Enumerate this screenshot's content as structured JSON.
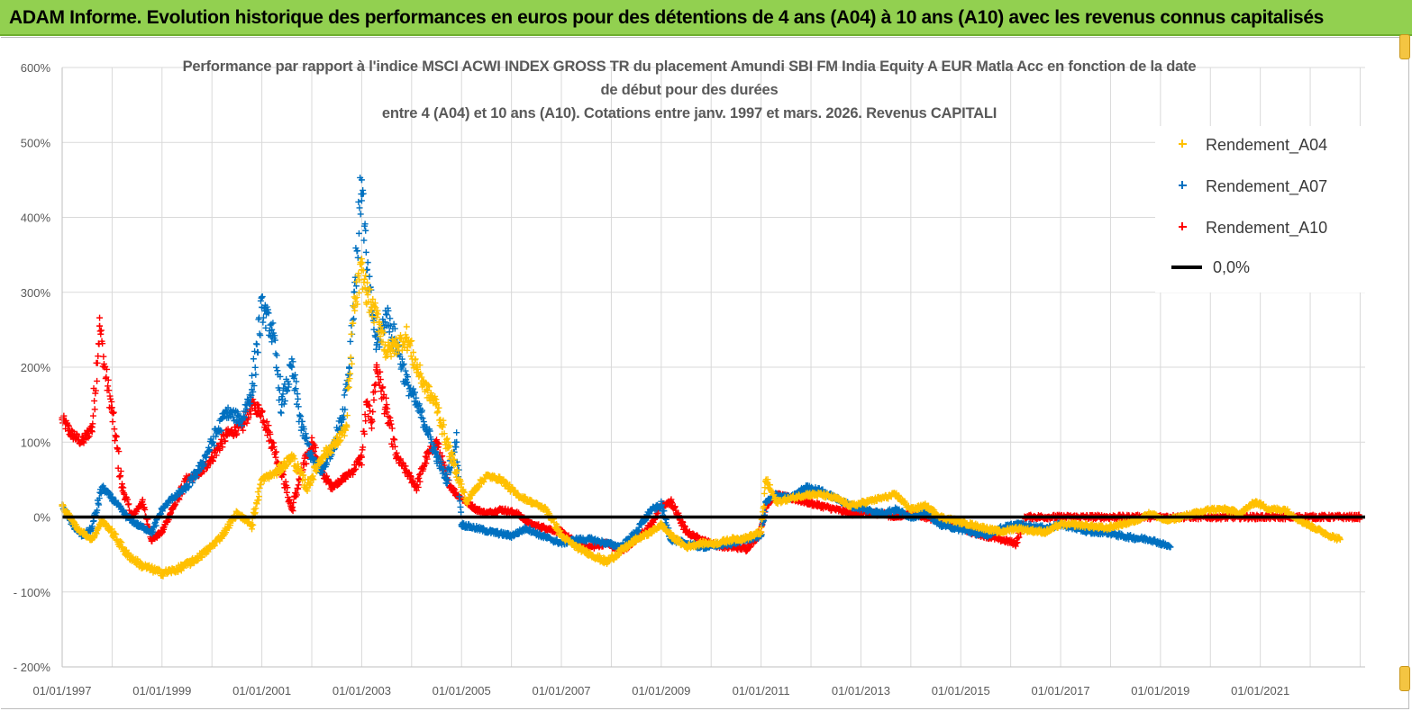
{
  "banner": {
    "title": "ADAM Informe. Evolution historique des performances en euros pour des détentions de 4 ans (A04) à 10 ans (A10) avec les revenus connus capitalisés"
  },
  "colors": {
    "banner_bg": "#92d050",
    "a04": "#ffc000",
    "a07": "#0070c0",
    "a10": "#ff0000",
    "zero_line": "#000000",
    "grid": "#d9d9d9"
  },
  "chart_data": {
    "type": "scatter",
    "title_lines": [
      "Performance par rapport à l'indice MSCI ACWI INDEX GROSS TR  du placement Amundi SBI FM India Equity A EUR Matla Acc en fonction de la date",
      "de début pour des durées",
      "entre 4 (A04) et 10 ans (A10). Cotations entre janv. 1997 et mars. 2026. Revenus CAPITALI"
    ],
    "xlabel": "",
    "ylabel": "",
    "x_axis_unit": "year (decimal)",
    "xlim": [
      1997.0,
      2023.1
    ],
    "ylim": [
      -200,
      600
    ],
    "grid": true,
    "legend_position": "top-right",
    "x_ticks": [
      {
        "value": 1997,
        "label": "01/01/1997"
      },
      {
        "value": 1999,
        "label": "01/01/1999"
      },
      {
        "value": 2001,
        "label": "01/01/2001"
      },
      {
        "value": 2003,
        "label": "01/01/2003"
      },
      {
        "value": 2005,
        "label": "01/01/2005"
      },
      {
        "value": 2007,
        "label": "01/01/2007"
      },
      {
        "value": 2009,
        "label": "01/01/2009"
      },
      {
        "value": 2011,
        "label": "01/01/2011"
      },
      {
        "value": 2013,
        "label": "01/01/2013"
      },
      {
        "value": 2015,
        "label": "01/01/2015"
      },
      {
        "value": 2017,
        "label": "01/01/2017"
      },
      {
        "value": 2019,
        "label": "01/01/2019"
      },
      {
        "value": 2021,
        "label": "01/01/2021"
      }
    ],
    "y_ticks": [
      {
        "value": 600,
        "label": "600%"
      },
      {
        "value": 500,
        "label": "500%"
      },
      {
        "value": 400,
        "label": "400%"
      },
      {
        "value": 300,
        "label": "300%"
      },
      {
        "value": 200,
        "label": "200%"
      },
      {
        "value": 100,
        "label": "100%"
      },
      {
        "value": 0,
        "label": "0%"
      },
      {
        "value": -100,
        "label": "- 100%"
      },
      {
        "value": -200,
        "label": "- 200%"
      }
    ],
    "series": [
      {
        "name": "Rendement_A04",
        "color": "#ffc000",
        "marker": "plus",
        "x": [
          1997.0,
          1997.3,
          1997.6,
          1997.8,
          1998.0,
          1998.3,
          1998.6,
          1998.9,
          1999.0,
          1999.3,
          1999.6,
          1999.9,
          2000.2,
          2000.5,
          2000.8,
          2001.0,
          2001.3,
          2001.6,
          2001.9,
          2002.2,
          2002.5,
          2002.7,
          2002.85,
          2003.0,
          2003.1,
          2003.2,
          2003.35,
          2003.5,
          2003.7,
          2003.9,
          2004.1,
          2004.3,
          2004.5,
          2004.7,
          2004.9,
          2005.1,
          2005.3,
          2005.5,
          2005.8,
          2006.1,
          2006.4,
          2006.7,
          2007.0,
          2007.3,
          2007.6,
          2007.9,
          2008.2,
          2008.5,
          2008.8,
          2009.0,
          2009.2,
          2009.5,
          2009.8,
          2010.1,
          2010.4,
          2010.7,
          2011.0,
          2011.1,
          2011.3,
          2011.6,
          2011.9,
          2012.2,
          2012.5,
          2012.8,
          2013.1,
          2013.4,
          2013.7,
          2014.0,
          2014.3,
          2014.6,
          2014.9,
          2015.2,
          2015.5,
          2015.8,
          2016.1,
          2016.4,
          2016.7,
          2017.0,
          2017.3,
          2017.6,
          2017.9,
          2018.2,
          2018.5,
          2018.8,
          2019.1,
          2019.4,
          2019.7,
          2020.0,
          2020.3,
          2020.6,
          2020.9,
          2021.2,
          2021.5,
          2021.8,
          2022.1,
          2022.4,
          2022.6
        ],
        "values": [
          15,
          -15,
          -30,
          -5,
          -20,
          -50,
          -65,
          -72,
          -75,
          -70,
          -60,
          -45,
          -25,
          5,
          -10,
          50,
          60,
          80,
          40,
          80,
          100,
          120,
          280,
          330,
          300,
          280,
          260,
          220,
          230,
          240,
          200,
          170,
          150,
          100,
          60,
          20,
          40,
          55,
          50,
          30,
          20,
          10,
          -25,
          -40,
          -50,
          -60,
          -45,
          -30,
          -20,
          -10,
          -25,
          -40,
          -35,
          -35,
          -30,
          -28,
          -20,
          50,
          20,
          25,
          30,
          30,
          25,
          15,
          20,
          25,
          30,
          10,
          15,
          0,
          -5,
          -10,
          -15,
          -20,
          -15,
          -18,
          -20,
          -10,
          -10,
          -12,
          -15,
          -10,
          -5,
          5,
          -5,
          0,
          5,
          10,
          10,
          5,
          20,
          10,
          10,
          -5,
          -15,
          -25,
          -30
        ]
      },
      {
        "name": "Rendement_A07",
        "color": "#0070c0",
        "marker": "plus",
        "x": [
          1997.0,
          1997.2,
          1997.4,
          1997.6,
          1997.8,
          1998.0,
          1998.3,
          1998.5,
          1998.8,
          1999.0,
          1999.2,
          1999.5,
          1999.8,
          2000.0,
          2000.3,
          2000.6,
          2000.8,
          2001.0,
          2001.2,
          2001.4,
          2001.6,
          2001.8,
          2002.0,
          2002.2,
          2002.4,
          2002.6,
          2002.75,
          2002.85,
          2003.0,
          2003.1,
          2003.2,
          2003.3,
          2003.5,
          2003.7,
          2003.9,
          2004.1,
          2004.3,
          2004.5,
          2004.7,
          2004.9,
          2005.0,
          2005.3,
          2005.6,
          2006.0,
          2006.3,
          2006.6,
          2007.0,
          2007.3,
          2007.6,
          2007.9,
          2008.2,
          2008.5,
          2008.8,
          2009.0,
          2009.2,
          2009.5,
          2009.8,
          2010.1,
          2010.4,
          2010.7,
          2011.0,
          2011.1,
          2011.3,
          2011.6,
          2011.9,
          2012.2,
          2012.5,
          2012.8,
          2013.1,
          2013.4,
          2013.7,
          2014.0,
          2014.3,
          2014.6,
          2014.9,
          2015.2,
          2015.5,
          2015.8,
          2016.1,
          2016.4,
          2016.7,
          2017.0,
          2017.3,
          2017.6,
          2017.9,
          2018.2,
          2018.5,
          2018.8,
          2019.0,
          2019.2
        ],
        "values": [
          15,
          -10,
          -25,
          -15,
          40,
          25,
          0,
          -10,
          -20,
          10,
          25,
          40,
          70,
          100,
          140,
          130,
          170,
          280,
          250,
          150,
          200,
          120,
          80,
          60,
          90,
          130,
          200,
          300,
          450,
          330,
          280,
          230,
          270,
          230,
          180,
          150,
          120,
          80,
          50,
          100,
          -10,
          -15,
          -20,
          -25,
          -15,
          -25,
          -35,
          -30,
          -30,
          -35,
          -40,
          -20,
          10,
          15,
          -30,
          -35,
          -40,
          -38,
          -35,
          -30,
          -25,
          20,
          30,
          25,
          40,
          35,
          25,
          15,
          10,
          5,
          10,
          0,
          5,
          -10,
          -15,
          -20,
          -25,
          -15,
          -10,
          -12,
          -15,
          -10,
          -15,
          -20,
          -20,
          -25,
          -28,
          -30,
          -35,
          -40
        ]
      },
      {
        "name": "Rendement_A10",
        "color": "#ff0000",
        "marker": "plus",
        "x": [
          1997.0,
          1997.2,
          1997.4,
          1997.6,
          1997.75,
          1997.85,
          1998.0,
          1998.2,
          1998.4,
          1998.6,
          1998.8,
          1999.0,
          1999.2,
          1999.5,
          1999.8,
          2000.0,
          2000.3,
          2000.6,
          2000.8,
          2001.0,
          2001.2,
          2001.4,
          2001.6,
          2001.8,
          2002.0,
          2002.2,
          2002.4,
          2002.6,
          2002.8,
          2003.0,
          2003.1,
          2003.2,
          2003.3,
          2003.5,
          2003.7,
          2003.9,
          2004.1,
          2004.3,
          2004.5,
          2004.7,
          2004.9,
          2005.1,
          2005.3,
          2005.5,
          2005.8,
          2006.1,
          2006.4,
          2006.7,
          2007.0,
          2007.3,
          2007.6,
          2007.9,
          2008.2,
          2008.5,
          2008.8,
          2009.0,
          2009.2,
          2009.5,
          2009.8,
          2010.1,
          2010.4,
          2010.7,
          2011.0,
          2011.1,
          2011.3,
          2011.6,
          2011.9,
          2012.2,
          2012.5,
          2012.8,
          2013.1,
          2013.4,
          2013.7,
          2014.0,
          2014.3,
          2014.6,
          2014.9,
          2015.2,
          2015.5,
          2015.8,
          2016.1,
          2016.3,
          2016.6,
          2017.0,
          2017.4,
          2017.8,
          2018.2,
          2018.6,
          2019.0,
          2019.4,
          2019.8,
          2020.2,
          2020.6,
          2021.0,
          2021.4,
          2021.8,
          2022.2,
          2022.6,
          2023.0
        ],
        "values": [
          130,
          110,
          100,
          120,
          255,
          200,
          140,
          40,
          0,
          20,
          -30,
          -20,
          10,
          50,
          60,
          80,
          110,
          120,
          150,
          140,
          100,
          60,
          10,
          60,
          100,
          60,
          40,
          50,
          60,
          80,
          150,
          130,
          200,
          140,
          80,
          60,
          40,
          80,
          100,
          50,
          30,
          20,
          10,
          5,
          10,
          5,
          -10,
          -15,
          -20,
          -35,
          -40,
          -35,
          -45,
          -30,
          -10,
          15,
          20,
          -20,
          -30,
          -38,
          -40,
          -42,
          -20,
          15,
          30,
          25,
          20,
          15,
          10,
          5,
          5,
          5,
          0,
          5,
          0,
          -5,
          -10,
          -20,
          -25,
          -30,
          -35,
          0,
          0,
          0,
          0,
          0,
          0,
          0,
          0,
          0,
          0,
          0,
          0,
          0,
          0,
          0,
          0,
          0,
          0
        ]
      },
      {
        "name": "0,0%",
        "color": "#000000",
        "marker": "line",
        "x": [
          1997.0,
          2023.1
        ],
        "values": [
          0,
          0
        ]
      }
    ]
  }
}
